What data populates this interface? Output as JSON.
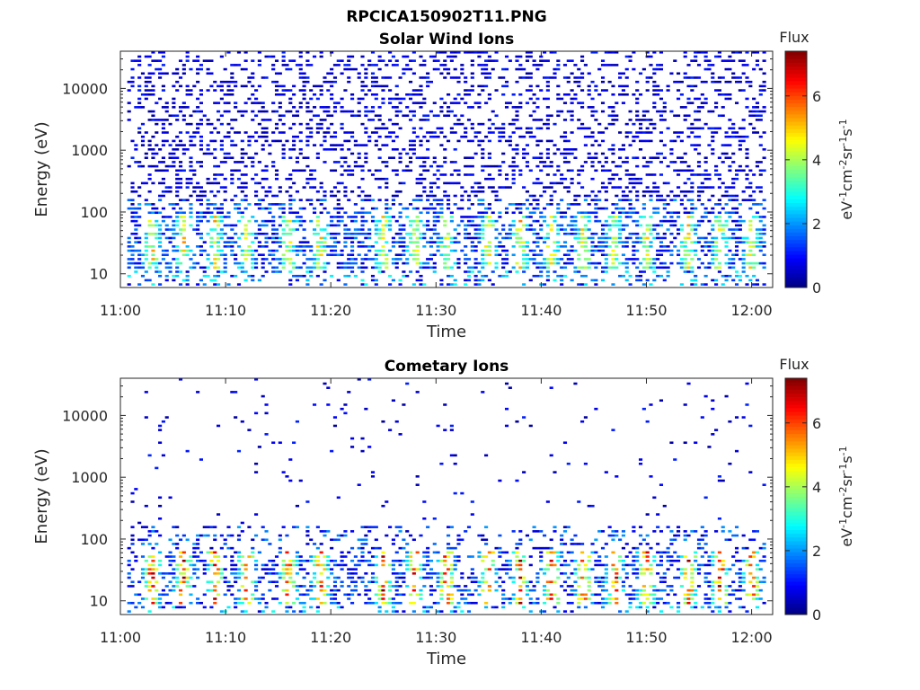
{
  "figure": {
    "title": "RPCICA150902T11.PNG"
  },
  "chart_data": [
    {
      "type": "heatmap",
      "title": "Solar Wind Ions",
      "xlabel": "Time",
      "ylabel": "Energy (eV)",
      "xlim": [
        "11:00",
        "12:02"
      ],
      "ylim": [
        6,
        40000
      ],
      "yscale": "log",
      "x_ticks": [
        "11:00",
        "11:10",
        "11:20",
        "11:30",
        "11:40",
        "11:50",
        "12:00"
      ],
      "y_ticks": [
        10,
        100,
        1000,
        10000
      ],
      "y_tick_labels": [
        "10",
        "100",
        "1000",
        "10000"
      ],
      "colorbar": {
        "title": "Flux",
        "label": "eV-1cm-2sr-1s-1",
        "range": [
          0,
          7.4
        ],
        "ticks": [
          0,
          2,
          4,
          6
        ],
        "colormap": "jet"
      },
      "intense_band_eV": [
        15,
        60
      ],
      "peak_flux": 5,
      "enhancement_times": [
        "11:03",
        "11:06",
        "11:09",
        "11:12",
        "11:16",
        "11:19",
        "11:25",
        "11:28",
        "11:31",
        "11:35",
        "11:38",
        "11:41",
        "11:44",
        "11:47",
        "11:50",
        "11:54",
        "11:57",
        "12:00"
      ]
    },
    {
      "type": "heatmap",
      "title": "Cometary Ions",
      "xlabel": "Time",
      "ylabel": "Energy (eV)",
      "xlim": [
        "11:00",
        "12:02"
      ],
      "ylim": [
        6,
        40000
      ],
      "yscale": "log",
      "x_ticks": [
        "11:00",
        "11:10",
        "11:20",
        "11:30",
        "11:40",
        "11:50",
        "12:00"
      ],
      "y_ticks": [
        10,
        100,
        1000,
        10000
      ],
      "y_tick_labels": [
        "10",
        "100",
        "1000",
        "10000"
      ],
      "colorbar": {
        "title": "Flux",
        "label": "eV-1cm-2sr-1s-1",
        "range": [
          0,
          7.4
        ],
        "ticks": [
          0,
          2,
          4,
          6
        ],
        "colormap": "jet"
      },
      "intense_band_eV": [
        12,
        45
      ],
      "peak_flux": 7,
      "enhancement_times": [
        "11:03",
        "11:06",
        "11:09",
        "11:12",
        "11:16",
        "11:19",
        "11:25",
        "11:28",
        "11:31",
        "11:35",
        "11:38",
        "11:41",
        "11:44",
        "11:47",
        "11:50",
        "11:54",
        "11:57",
        "12:00"
      ]
    }
  ]
}
